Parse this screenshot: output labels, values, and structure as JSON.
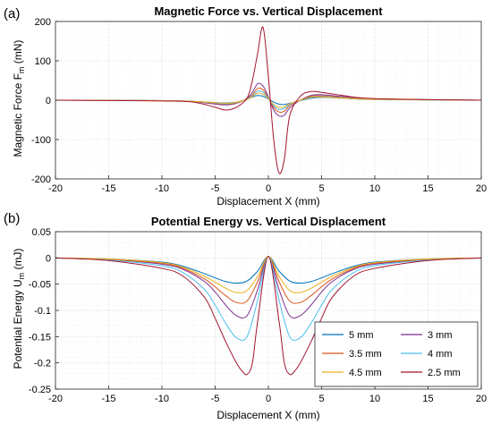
{
  "chart_data": [
    {
      "panel_label": "(a)",
      "type": "line",
      "title": "Magnetic Force vs. Vertical Displacement",
      "xlabel": "Displacement X (mm)",
      "ylabel": "Magnetic Force F",
      "ylabel_sub": "m",
      "ylabel_unit": " (mN)",
      "xlim": [
        -20,
        20
      ],
      "ylim": [
        -200,
        200
      ],
      "xticks": [
        -20,
        -15,
        -10,
        -5,
        0,
        5,
        10,
        15,
        20
      ],
      "yticks": [
        -200,
        -100,
        0,
        100,
        200
      ],
      "grid": true,
      "series": [
        {
          "name": "5 mm",
          "color": "#0072BD",
          "x": [
            -20,
            -10,
            -7,
            -5,
            -4,
            -3,
            -2,
            -1.5,
            -1,
            -0.5,
            0,
            0.5,
            1,
            1.5,
            2,
            3,
            4,
            5,
            7,
            10,
            20
          ],
          "y": [
            0,
            -1,
            -3,
            -6,
            -7,
            -5,
            2,
            8,
            12,
            10,
            3,
            -5,
            -10,
            -11,
            -8,
            -1,
            5,
            7,
            5,
            2,
            0
          ]
        },
        {
          "name": "3 mm",
          "color": "#7E2F8E",
          "x": [
            -20,
            -10,
            -7,
            -5,
            -4,
            -3,
            -2,
            -1.5,
            -1,
            -0.5,
            0,
            0.5,
            1,
            1.5,
            2,
            3,
            4,
            5,
            7,
            10,
            20
          ],
          "y": [
            0,
            -1,
            -4,
            -10,
            -12,
            -8,
            5,
            20,
            42,
            36,
            8,
            -25,
            -40,
            -38,
            -20,
            0,
            12,
            14,
            9,
            3,
            0
          ]
        },
        {
          "name": "3.5 mm",
          "color": "#D95319",
          "x": [
            -20,
            -10,
            -7,
            -5,
            -4,
            -3,
            -2,
            -1.5,
            -1,
            -0.5,
            0,
            0.5,
            1,
            1.5,
            2,
            3,
            4,
            5,
            7,
            10,
            20
          ],
          "y": [
            0,
            -1,
            -3,
            -8,
            -10,
            -7,
            3,
            14,
            30,
            26,
            6,
            -18,
            -30,
            -28,
            -14,
            0,
            10,
            11,
            7,
            3,
            0
          ]
        },
        {
          "name": "4 mm",
          "color": "#4DBEEE",
          "x": [
            -20,
            -10,
            -7,
            -5,
            -4,
            -3,
            -2,
            -1.5,
            -1,
            -0.5,
            0,
            0.5,
            1,
            1.5,
            2,
            3,
            4,
            5,
            7,
            10,
            20
          ],
          "y": [
            0,
            -1,
            -3,
            -7,
            -9,
            -6,
            3,
            11,
            23,
            20,
            5,
            -14,
            -23,
            -21,
            -11,
            0,
            8,
            9,
            6,
            2,
            0
          ]
        },
        {
          "name": "4.5 mm",
          "color": "#EDB120",
          "x": [
            -20,
            -10,
            -7,
            -5,
            -4,
            -3,
            -2,
            -1.5,
            -1,
            -0.5,
            0,
            0.5,
            1,
            1.5,
            2,
            3,
            4,
            5,
            7,
            10,
            20
          ],
          "y": [
            0,
            -1,
            -3,
            -6,
            -8,
            -5,
            2,
            9,
            18,
            15,
            4,
            -11,
            -18,
            -17,
            -9,
            0,
            7,
            8,
            5,
            2,
            0
          ]
        },
        {
          "name": "2.5 mm",
          "color": "#A2142F",
          "x": [
            -20,
            -10,
            -7,
            -5,
            -4,
            -3,
            -2,
            -1.5,
            -1,
            -0.5,
            0,
            0.5,
            1,
            1.5,
            2,
            3,
            4,
            5,
            7,
            10,
            20
          ],
          "y": [
            0,
            -2,
            -5,
            -18,
            -25,
            -18,
            5,
            50,
            120,
            185,
            60,
            -100,
            -185,
            -150,
            -40,
            10,
            22,
            20,
            12,
            4,
            0
          ]
        }
      ]
    },
    {
      "panel_label": "(b)",
      "type": "line",
      "title": "Potential Energy vs. Vertical Displacement",
      "xlabel": "Displacement X (mm)",
      "ylabel": "Potential Energy U",
      "ylabel_sub": "m",
      "ylabel_unit": " (mJ)",
      "xlim": [
        -20,
        20
      ],
      "ylim": [
        -0.25,
        0.05
      ],
      "xticks": [
        -20,
        -15,
        -10,
        -5,
        0,
        5,
        10,
        15,
        20
      ],
      "yticks": [
        -0.25,
        -0.2,
        -0.15,
        -0.1,
        -0.05,
        0,
        0.05
      ],
      "ytick_labels": [
        "-0.25",
        "-0.2",
        "-0.15",
        "-0.1",
        "-0.05",
        "0",
        "0.05"
      ],
      "grid": true,
      "legend_position": "lower-right",
      "series": [
        {
          "name": "5 mm",
          "color": "#0072BD",
          "x": [
            -20,
            -15,
            -10,
            -8,
            -6,
            -5,
            -4,
            -3,
            -2,
            -1,
            0,
            1,
            2,
            3,
            4,
            5,
            6,
            8,
            10,
            15,
            20
          ],
          "y": [
            0,
            -0.002,
            -0.008,
            -0.016,
            -0.03,
            -0.038,
            -0.045,
            -0.048,
            -0.044,
            -0.025,
            0.003,
            -0.025,
            -0.044,
            -0.048,
            -0.045,
            -0.038,
            -0.03,
            -0.016,
            -0.008,
            -0.002,
            0
          ]
        },
        {
          "name": "3 mm",
          "color": "#7E2F8E",
          "x": [
            -20,
            -15,
            -10,
            -8,
            -6,
            -5,
            -4,
            -3,
            -2,
            -1,
            0,
            1,
            2,
            3,
            4,
            5,
            6,
            8,
            10,
            15,
            20
          ],
          "y": [
            0,
            -0.003,
            -0.012,
            -0.022,
            -0.045,
            -0.065,
            -0.09,
            -0.11,
            -0.11,
            -0.06,
            0.003,
            -0.06,
            -0.11,
            -0.11,
            -0.09,
            -0.065,
            -0.045,
            -0.022,
            -0.012,
            -0.003,
            0
          ]
        },
        {
          "name": "3.5 mm",
          "color": "#D95319",
          "x": [
            -20,
            -15,
            -10,
            -8,
            -6,
            -5,
            -4,
            -3,
            -2,
            -1,
            0,
            1,
            2,
            3,
            4,
            5,
            6,
            8,
            10,
            15,
            20
          ],
          "y": [
            0,
            -0.003,
            -0.01,
            -0.02,
            -0.04,
            -0.055,
            -0.072,
            -0.085,
            -0.082,
            -0.045,
            0.003,
            -0.045,
            -0.082,
            -0.085,
            -0.072,
            -0.055,
            -0.04,
            -0.02,
            -0.01,
            -0.003,
            0
          ]
        },
        {
          "name": "4 mm",
          "color": "#4DBEEE",
          "x": [
            -20,
            -15,
            -10,
            -8,
            -6,
            -5,
            -4,
            -3,
            -2,
            -1,
            0,
            1,
            2,
            3,
            4,
            5,
            6,
            8,
            10,
            15,
            20
          ],
          "y": [
            0,
            -0.004,
            -0.015,
            -0.028,
            -0.06,
            -0.09,
            -0.125,
            -0.152,
            -0.15,
            -0.08,
            0.003,
            -0.08,
            -0.15,
            -0.152,
            -0.125,
            -0.09,
            -0.06,
            -0.028,
            -0.015,
            -0.004,
            0
          ]
        },
        {
          "name": "4.5 mm",
          "color": "#EDB120",
          "x": [
            -20,
            -15,
            -10,
            -8,
            -6,
            -5,
            -4,
            -3,
            -2,
            -1,
            0,
            1,
            2,
            3,
            4,
            5,
            6,
            8,
            10,
            15,
            20
          ],
          "y": [
            0,
            -0.002,
            -0.009,
            -0.018,
            -0.035,
            -0.046,
            -0.058,
            -0.066,
            -0.062,
            -0.035,
            0.003,
            -0.035,
            -0.062,
            -0.066,
            -0.058,
            -0.046,
            -0.035,
            -0.018,
            -0.009,
            -0.002,
            0
          ]
        },
        {
          "name": "2.5 mm",
          "color": "#A2142F",
          "x": [
            -20,
            -15,
            -10,
            -8,
            -6,
            -5,
            -4,
            -3,
            -2.5,
            -2,
            -1.5,
            -1,
            0,
            1,
            1.5,
            2,
            2.5,
            3,
            4,
            5,
            6,
            8,
            10,
            15,
            20
          ],
          "y": [
            0,
            -0.005,
            -0.02,
            -0.035,
            -0.075,
            -0.115,
            -0.16,
            -0.2,
            -0.215,
            -0.222,
            -0.2,
            -0.12,
            0.003,
            -0.12,
            -0.2,
            -0.222,
            -0.215,
            -0.2,
            -0.16,
            -0.115,
            -0.075,
            -0.035,
            -0.02,
            -0.005,
            0
          ]
        }
      ]
    }
  ]
}
